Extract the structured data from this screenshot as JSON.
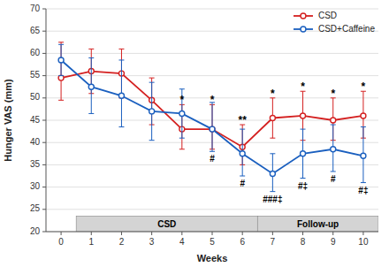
{
  "chart_data": {
    "type": "line",
    "xlabel": "Weeks",
    "ylabel": "Hunger VAS (mm)",
    "x": [
      0,
      1,
      2,
      3,
      4,
      5,
      6,
      7,
      8,
      9,
      10
    ],
    "xlim": [
      -0.5,
      10.5
    ],
    "xticks": [
      0,
      1,
      2,
      3,
      4,
      5,
      6,
      7,
      8,
      9,
      10
    ],
    "ylim": [
      20,
      70
    ],
    "yticks": [
      20,
      25,
      30,
      35,
      40,
      45,
      50,
      55,
      60,
      65,
      70
    ],
    "grid": "y",
    "legend": "upper right",
    "series": [
      {
        "name": "CSD",
        "color": "#d42020",
        "marker": "o",
        "values": [
          54.5,
          56.0,
          55.5,
          49.5,
          43.0,
          43.0,
          39.0,
          45.5,
          46.0,
          45.0,
          46.0
        ],
        "err_lower": [
          5.0,
          5.0,
          5.5,
          5.5,
          4.5,
          4.5,
          4.0,
          4.5,
          5.5,
          4.5,
          5.0
        ],
        "err_upper": [
          8.0,
          5.0,
          5.5,
          5.0,
          5.5,
          5.5,
          5.0,
          4.5,
          5.5,
          5.0,
          5.5
        ]
      },
      {
        "name": "CSD+Caffeine",
        "color": "#1a5fbf",
        "marker": "o",
        "values": [
          58.5,
          52.5,
          50.5,
          47.0,
          46.5,
          43.0,
          37.5,
          33.0,
          37.5,
          38.5,
          37.0
        ],
        "err_lower": [
          3.5,
          6.0,
          7.0,
          6.5,
          5.5,
          5.0,
          5.0,
          4.0,
          5.5,
          5.0,
          6.0
        ],
        "err_upper": [
          3.5,
          6.5,
          8.0,
          6.5,
          5.5,
          6.0,
          5.5,
          4.5,
          5.5,
          5.5,
          6.5
        ]
      }
    ],
    "phases": [
      {
        "label": "CSD",
        "start": 0.5,
        "end": 6.5,
        "bottom": 20.0,
        "top": 23.5,
        "color": "#d4d4d4"
      },
      {
        "label": "Follow-up",
        "start": 6.5,
        "end": 10.5,
        "bottom": 20.0,
        "top": 23.5,
        "color": "#d4d4d4"
      }
    ],
    "star_annotations": [
      {
        "x": 4,
        "text": "*"
      },
      {
        "x": 5,
        "text": "*"
      },
      {
        "x": 6,
        "text": "**"
      },
      {
        "x": 7,
        "text": "*"
      },
      {
        "x": 8,
        "text": "*"
      },
      {
        "x": 9,
        "text": "*"
      },
      {
        "x": 10,
        "text": "*"
      }
    ],
    "hash_annotations": [
      {
        "x": 5,
        "text": "#"
      },
      {
        "x": 6,
        "text": "#"
      },
      {
        "x": 7,
        "text": "###‡"
      },
      {
        "x": 8,
        "text": "#‡"
      },
      {
        "x": 9,
        "text": "#"
      },
      {
        "x": 10,
        "text": "#‡"
      }
    ]
  }
}
